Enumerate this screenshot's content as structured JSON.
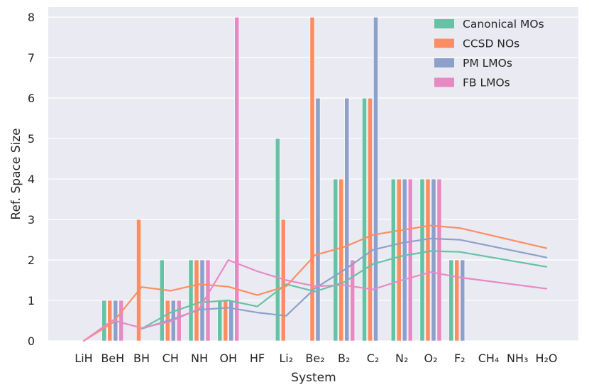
{
  "chart_data": {
    "type": "bar",
    "title": "",
    "xlabel": "System",
    "ylabel": "Ref. Space Size",
    "ylim": [
      0,
      8.25
    ],
    "yticks": [
      0,
      1,
      2,
      3,
      4,
      5,
      6,
      7,
      8
    ],
    "grid": true,
    "legend_position": "top-right",
    "categories": [
      "LiH",
      "BeH",
      "BH",
      "CH",
      "NH",
      "OH",
      "HF",
      "Li₂",
      "Be₂",
      "B₂",
      "C₂",
      "N₂",
      "O₂",
      "F₂",
      "CH₄",
      "NH₃",
      "H₂O"
    ],
    "series": [
      {
        "name": "Canonical MOs",
        "color": "#66c2a5",
        "values": [
          0,
          1,
          0,
          2,
          2,
          1,
          0,
          5,
          0,
          4,
          6,
          4,
          4,
          2,
          0,
          0,
          0
        ],
        "trend": [
          null,
          null,
          0.3,
          0.7,
          0.95,
          1.0,
          0.85,
          1.4,
          1.22,
          1.45,
          1.9,
          2.1,
          2.22,
          2.2,
          null,
          null,
          1.83
        ]
      },
      {
        "name": "CCSD NOs",
        "color": "#fc8d62",
        "values": [
          0,
          1,
          3,
          1,
          2,
          1,
          0,
          3,
          8,
          4,
          6,
          4,
          4,
          2,
          0,
          0,
          0
        ],
        "trend": [
          0.0,
          0.45,
          1.33,
          1.24,
          1.4,
          1.34,
          1.13,
          1.35,
          2.12,
          2.32,
          2.62,
          2.74,
          2.85,
          2.79,
          null,
          null,
          2.29
        ]
      },
      {
        "name": "PM LMOs",
        "color": "#8da0cb",
        "values": [
          0,
          1,
          0,
          1,
          2,
          1,
          0,
          0,
          6,
          6,
          8,
          4,
          4,
          2,
          0,
          0,
          0
        ],
        "trend": [
          null,
          null,
          0.3,
          0.52,
          0.77,
          0.82,
          0.7,
          0.62,
          1.3,
          1.75,
          2.25,
          2.42,
          2.53,
          2.5,
          null,
          null,
          2.06
        ]
      },
      {
        "name": "FB LMOs",
        "color": "#e78ac3",
        "values": [
          0,
          1,
          0,
          1,
          2,
          8,
          0,
          0,
          0,
          2,
          0,
          4,
          4,
          0,
          0,
          0,
          0
        ],
        "trend": [
          0.0,
          0.51,
          0.32,
          0.48,
          0.8,
          2.0,
          1.72,
          1.5,
          1.35,
          1.38,
          1.27,
          1.5,
          1.7,
          1.57,
          null,
          null,
          1.29
        ]
      }
    ]
  }
}
